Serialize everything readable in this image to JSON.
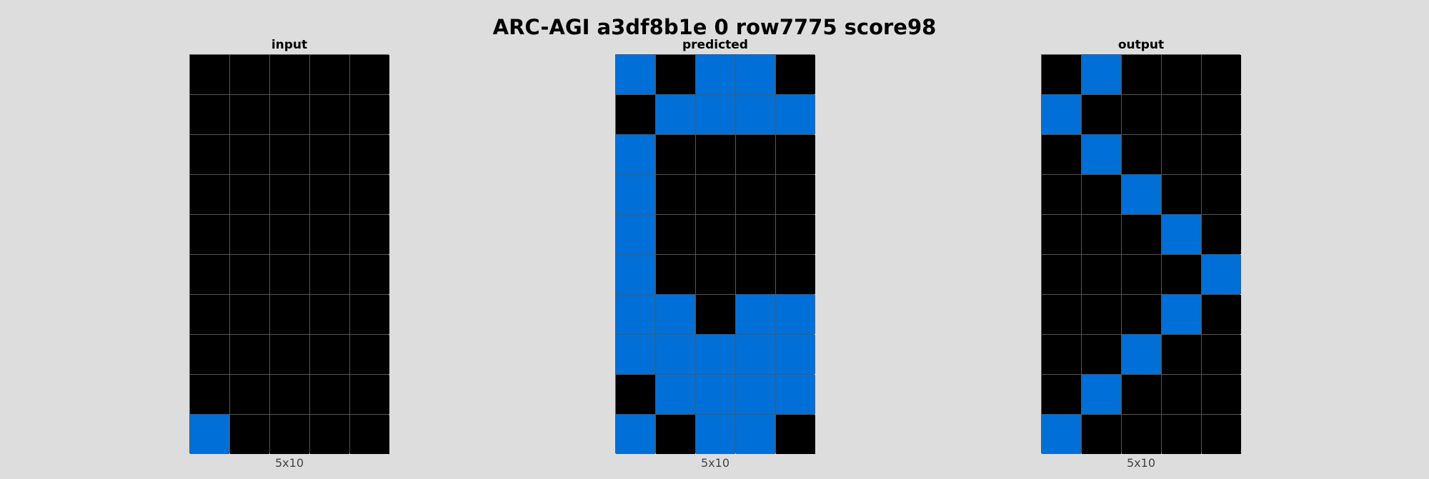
{
  "title": "ARC-AGI a3df8b1e 0 row7775 score98",
  "palette": {
    "0": "#000000",
    "1": "#0070d8"
  },
  "panels": [
    {
      "title": "input",
      "caption": "5x10",
      "grid": [
        [
          0,
          0,
          0,
          0,
          0
        ],
        [
          0,
          0,
          0,
          0,
          0
        ],
        [
          0,
          0,
          0,
          0,
          0
        ],
        [
          0,
          0,
          0,
          0,
          0
        ],
        [
          0,
          0,
          0,
          0,
          0
        ],
        [
          0,
          0,
          0,
          0,
          0
        ],
        [
          0,
          0,
          0,
          0,
          0
        ],
        [
          0,
          0,
          0,
          0,
          0
        ],
        [
          0,
          0,
          0,
          0,
          0
        ],
        [
          1,
          0,
          0,
          0,
          0
        ]
      ]
    },
    {
      "title": "predicted",
      "caption": "5x10",
      "grid": [
        [
          1,
          0,
          1,
          1,
          0
        ],
        [
          0,
          1,
          1,
          1,
          1
        ],
        [
          1,
          0,
          0,
          0,
          0
        ],
        [
          1,
          0,
          0,
          0,
          0
        ],
        [
          1,
          0,
          0,
          0,
          0
        ],
        [
          1,
          0,
          0,
          0,
          0
        ],
        [
          1,
          1,
          0,
          1,
          1
        ],
        [
          1,
          1,
          1,
          1,
          1
        ],
        [
          0,
          1,
          1,
          1,
          1
        ],
        [
          1,
          0,
          1,
          1,
          0
        ]
      ]
    },
    {
      "title": "output",
      "caption": "5x10",
      "grid": [
        [
          0,
          1,
          0,
          0,
          0
        ],
        [
          1,
          0,
          0,
          0,
          0
        ],
        [
          0,
          1,
          0,
          0,
          0
        ],
        [
          0,
          0,
          1,
          0,
          0
        ],
        [
          0,
          0,
          0,
          1,
          0
        ],
        [
          0,
          0,
          0,
          0,
          1
        ],
        [
          0,
          0,
          0,
          1,
          0
        ],
        [
          0,
          0,
          1,
          0,
          0
        ],
        [
          0,
          1,
          0,
          0,
          0
        ],
        [
          1,
          0,
          0,
          0,
          0
        ]
      ]
    }
  ]
}
